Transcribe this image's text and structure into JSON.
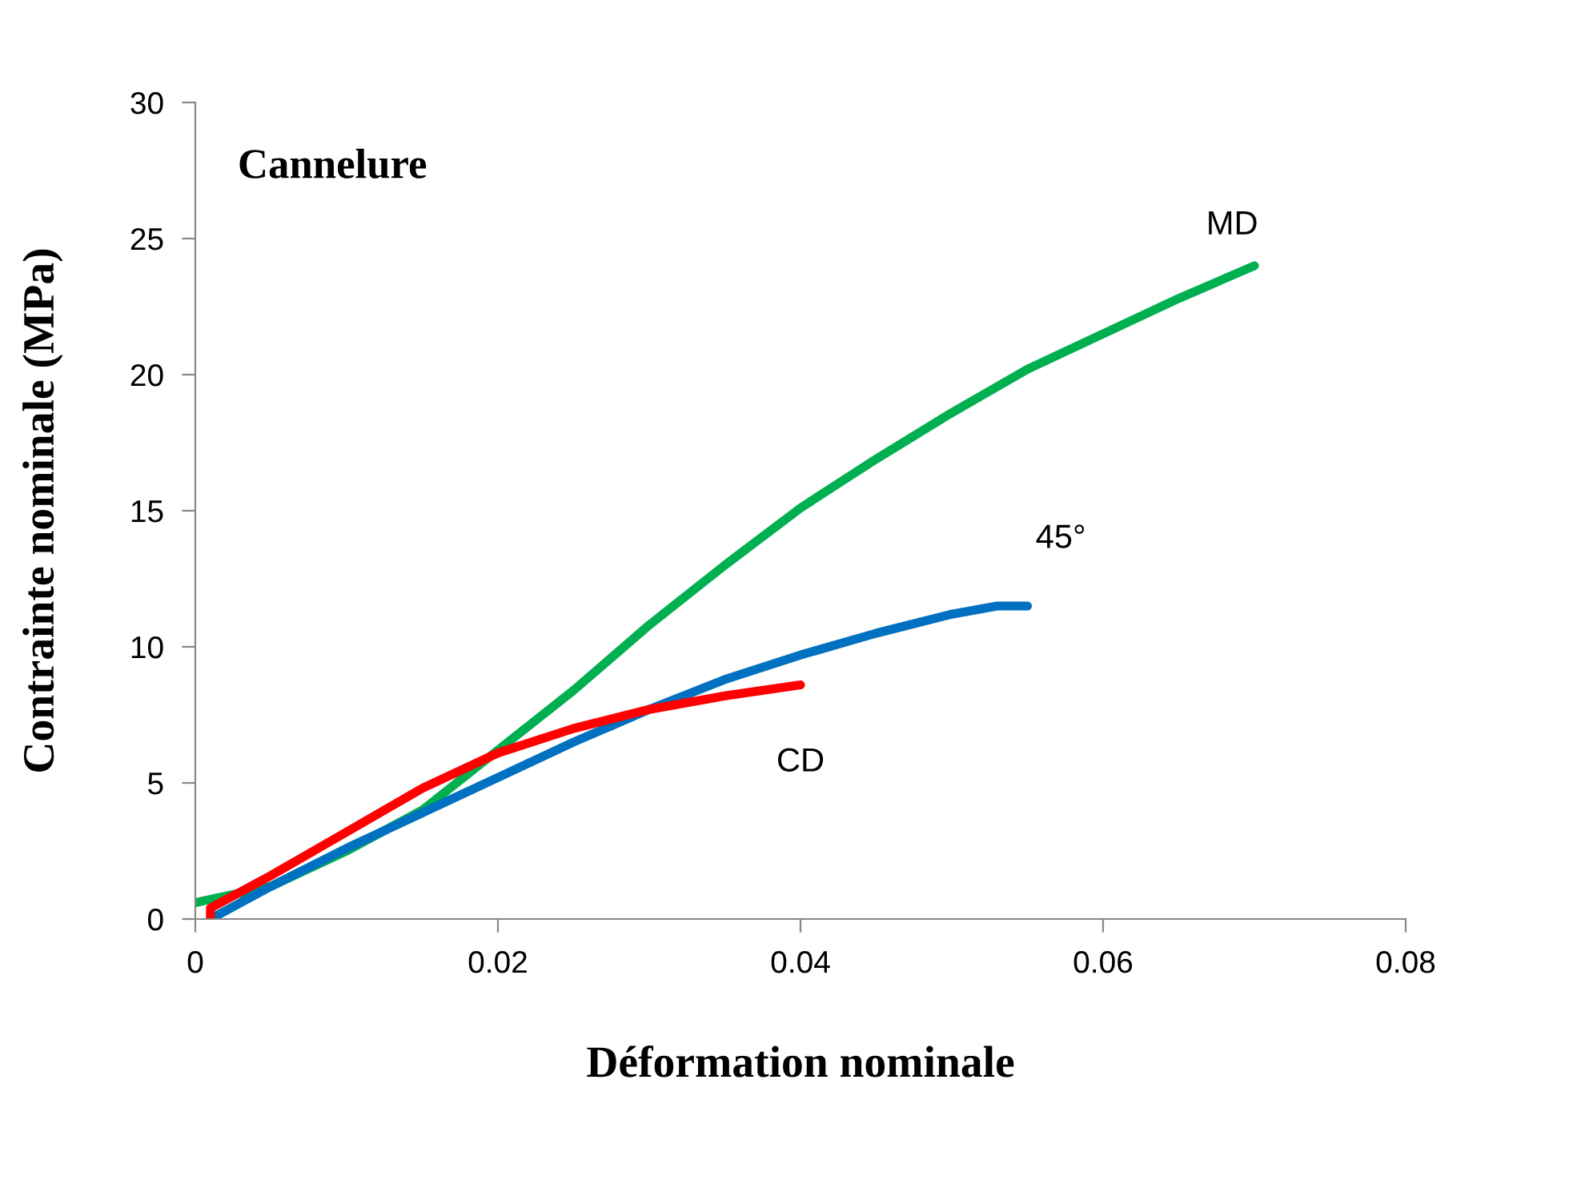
{
  "chart_data": {
    "type": "line",
    "title": "Cannelure",
    "xlabel": "Déformation nominale",
    "ylabel": "Contrainte nominale (MPa)",
    "xlim": [
      0,
      0.08
    ],
    "ylim": [
      0,
      30
    ],
    "xticks": [
      0,
      0.02,
      0.04,
      0.06,
      0.08
    ],
    "yticks": [
      0,
      5,
      10,
      15,
      20,
      25,
      30
    ],
    "grid": false,
    "legend": false,
    "marker": "none",
    "line_style": "solid",
    "series": [
      {
        "name": "MD",
        "color": "#00b050",
        "x": [
          0,
          0.005,
          0.01,
          0.015,
          0.02,
          0.025,
          0.03,
          0.035,
          0.04,
          0.045,
          0.05,
          0.055,
          0.06,
          0.065,
          0.07
        ],
        "values": [
          0.6,
          1.2,
          2.5,
          4.0,
          6.2,
          8.4,
          10.8,
          13.0,
          15.1,
          16.9,
          18.6,
          20.2,
          21.5,
          22.8,
          24.0
        ]
      },
      {
        "name": "45°",
        "color": "#0070c0",
        "x": [
          0.001,
          0.005,
          0.01,
          0.015,
          0.02,
          0.025,
          0.03,
          0.035,
          0.04,
          0.045,
          0.05,
          0.053,
          0.055
        ],
        "values": [
          0,
          1.2,
          2.6,
          3.9,
          5.2,
          6.5,
          7.7,
          8.8,
          9.7,
          10.5,
          11.2,
          11.5,
          11.5
        ]
      },
      {
        "name": "CD",
        "color": "#ff0000",
        "x": [
          0.001,
          0.001,
          0.005,
          0.01,
          0.015,
          0.02,
          0.025,
          0.03,
          0.035,
          0.04
        ],
        "values": [
          0,
          0.4,
          1.6,
          3.2,
          4.8,
          6.1,
          7.0,
          7.7,
          8.2,
          8.6
        ]
      }
    ]
  }
}
